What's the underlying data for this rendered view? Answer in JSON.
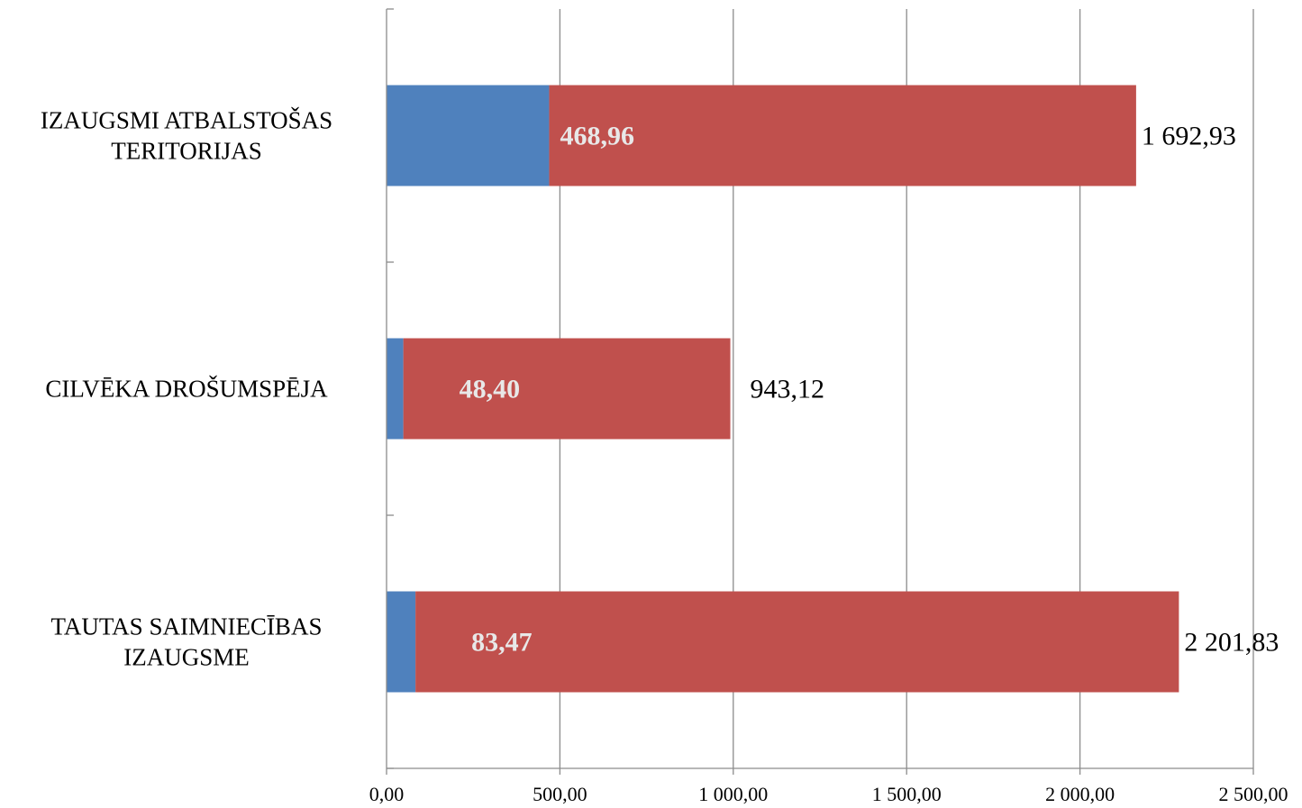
{
  "chart_data": {
    "type": "bar",
    "orientation": "horizontal",
    "stacked": true,
    "categories": [
      [
        "IZAUGSMI ATBALSTOŠAS",
        "TERITORIJAS"
      ],
      [
        "CILVĒKA DROŠUMSPĒJA"
      ],
      [
        "TAUTAS SAIMNIECĪBAS",
        "IZAUGSME"
      ]
    ],
    "series": [
      {
        "color": "#4f81bd",
        "values": [
          468.96,
          48.4,
          83.47
        ]
      },
      {
        "color": "#c0504d",
        "values": [
          1692.93,
          943.12,
          2201.83
        ]
      }
    ],
    "segment_labels": [
      {
        "inner": "468,96",
        "outer": "1 692,93"
      },
      {
        "inner": "48,40",
        "outer": "943,12"
      },
      {
        "inner": "83,47",
        "outer": "2 201,83"
      }
    ],
    "xlim": [
      0,
      2500
    ],
    "xticks": [
      0,
      500,
      1000,
      1500,
      2000,
      2500
    ],
    "xtick_labels": [
      "0,00",
      "500,00",
      "1 000,00",
      "1 500,00",
      "2 000,00",
      "2 500,00"
    ],
    "grid": true,
    "legend": "none",
    "title": "",
    "xlabel": "",
    "ylabel": ""
  }
}
